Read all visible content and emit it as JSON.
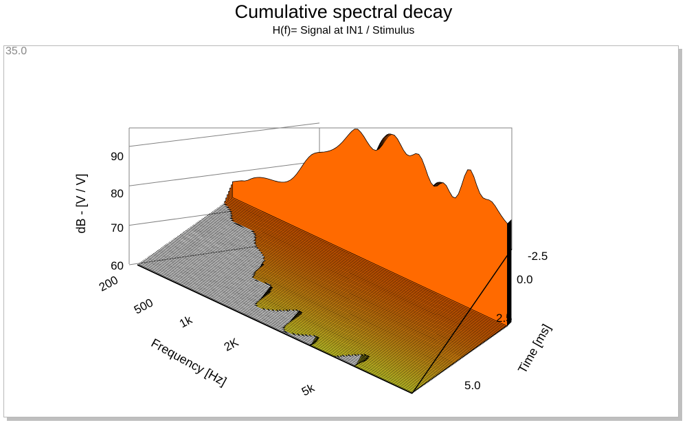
{
  "chart_data": {
    "type": "waterfall-3d",
    "title": "Cumulative spectral decay",
    "subtitle": "H(f)= Signal at IN1 / Stimulus",
    "corner_label": "35.0",
    "zlabel": "dB - [V / V]",
    "xlabel": "Frequency [Hz]",
    "ylabel": "Time [ms]",
    "z_ticks": [
      "60",
      "70",
      "80",
      "90"
    ],
    "x_ticks": [
      "200",
      "500",
      "1k",
      "2K",
      "5k"
    ],
    "y_ticks": [
      "-2.5",
      "0.0",
      "2.5",
      "5.0"
    ],
    "zlim": [
      60,
      98
    ],
    "x_scale": "log",
    "colors": {
      "front": "#ffff33",
      "back": "#ff6a00",
      "shadow": "#000000",
      "box": "#808080"
    }
  }
}
